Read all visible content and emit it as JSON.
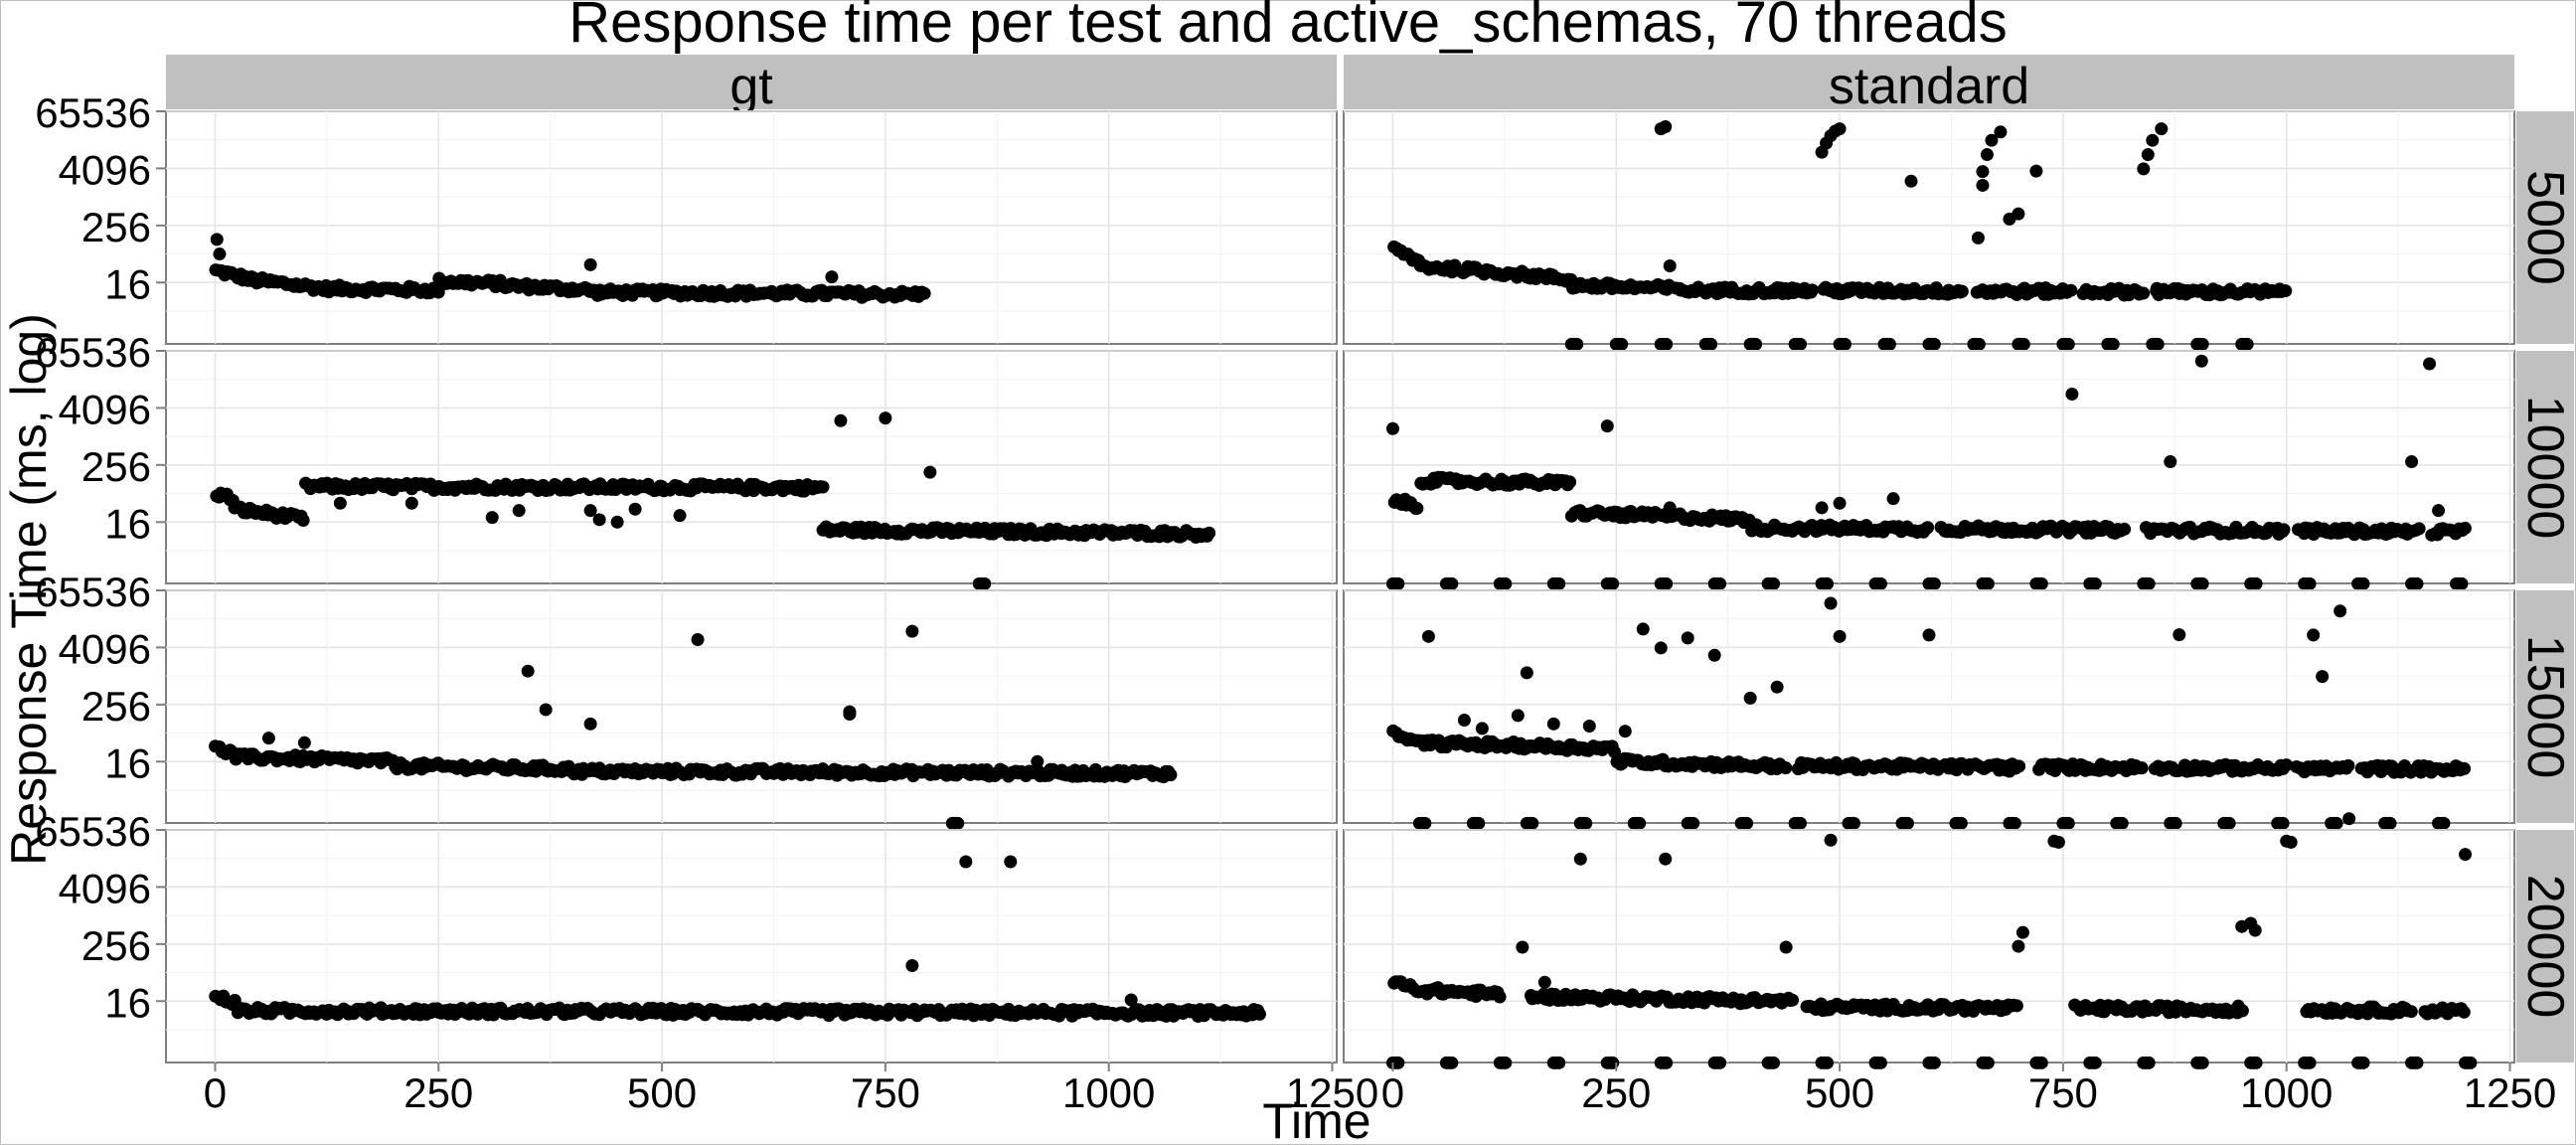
{
  "chart_data": {
    "type": "scatter",
    "title": "Response time per test and active_schemas, 70 threads",
    "xlabel": "Time",
    "ylabel": "Response Time (ms, log)",
    "y_scale": "log2",
    "x_range": [
      -55,
      1255
    ],
    "y_range": [
      1,
      65536
    ],
    "x_ticks": [
      "0",
      "250",
      "500",
      "750",
      "1000",
      "1250"
    ],
    "y_ticks": [
      "16",
      "256",
      "4096",
      "65536"
    ],
    "columns": [
      "gt",
      "standard"
    ],
    "rows": [
      "5000",
      "10000",
      "15000",
      "20000"
    ],
    "grid": true,
    "marker_color": "#000000",
    "strip_color": "#c0c0c0",
    "series_note": "each panel: cloud of ~1 point per second; baseline (ms) and run duration (s) plus outliers",
    "panels": {
      "gt|5000": {
        "duration": 795,
        "segments": [
          [
            0,
            40,
            28,
            18
          ],
          [
            40,
            120,
            18,
            12
          ],
          [
            120,
            250,
            12,
            11
          ],
          [
            250,
            320,
            17,
            15
          ],
          [
            320,
            420,
            14,
            11
          ],
          [
            420,
            795,
            10,
            9
          ]
        ],
        "gaps": [],
        "outliers": [
          [
            2,
            130
          ],
          [
            5,
            64
          ],
          [
            420,
            38
          ],
          [
            690,
            21
          ]
        ],
        "zero_points": []
      },
      "gt|10000": {
        "duration": 1115,
        "segments": [
          [
            0,
            20,
            64,
            48
          ],
          [
            20,
            100,
            30,
            18
          ],
          [
            100,
            680,
            90,
            85
          ],
          [
            680,
            1115,
            11,
            9
          ]
        ],
        "gaps": [],
        "outliers": [
          [
            750,
            2500
          ],
          [
            700,
            2200
          ],
          [
            800,
            180
          ],
          [
            140,
            40
          ],
          [
            220,
            40
          ],
          [
            310,
            20
          ],
          [
            340,
            28
          ],
          [
            420,
            28
          ],
          [
            470,
            30
          ],
          [
            520,
            22
          ],
          [
            430,
            18
          ],
          [
            450,
            16
          ]
        ],
        "zero_points": [
          [
            855,
            0.55
          ]
        ]
      },
      "gt|15000": {
        "duration": 1070,
        "segments": [
          [
            0,
            20,
            30,
            24
          ],
          [
            20,
            200,
            20,
            16
          ],
          [
            200,
            400,
            13,
            11
          ],
          [
            400,
            1070,
            10,
            9
          ]
        ],
        "gaps": [],
        "outliers": [
          [
            350,
            1300
          ],
          [
            540,
            6000
          ],
          [
            780,
            9000
          ],
          [
            710,
            180
          ],
          [
            710,
            160
          ],
          [
            370,
            200
          ],
          [
            420,
            100
          ],
          [
            920,
            16
          ],
          [
            100,
            40
          ],
          [
            60,
            50
          ]
        ],
        "zero_points": [
          [
            825,
            0.4
          ]
        ]
      },
      "gt|20000": {
        "duration": 1170,
        "segments": [
          [
            0,
            25,
            20,
            14
          ],
          [
            25,
            1170,
            10,
            9
          ]
        ],
        "gaps": [],
        "outliers": [
          [
            840,
            14000
          ],
          [
            890,
            14000
          ],
          [
            780,
            90
          ],
          [
            1025,
            17
          ]
        ],
        "zero_points": []
      },
      "standard|5000": {
        "duration": 1000,
        "segments": [
          [
            0,
            30,
            80,
            40
          ],
          [
            30,
            200,
            35,
            18
          ],
          [
            200,
            310,
            14,
            12
          ],
          [
            310,
            1000,
            11,
            10
          ]
        ],
        "gaps": [
          [
            310,
            315
          ],
          [
            470,
            480
          ],
          [
            640,
            650
          ],
          [
            760,
            770
          ],
          [
            840,
            850
          ]
        ],
        "outliers": [
          [
            300,
            28000
          ],
          [
            305,
            31000
          ],
          [
            480,
            9000
          ],
          [
            485,
            14000
          ],
          [
            490,
            20000
          ],
          [
            495,
            25000
          ],
          [
            500,
            28000
          ],
          [
            580,
            2200
          ],
          [
            660,
            3500
          ],
          [
            665,
            8000
          ],
          [
            670,
            16000
          ],
          [
            680,
            24000
          ],
          [
            690,
            350
          ],
          [
            700,
            450
          ],
          [
            720,
            3600
          ],
          [
            840,
            4000
          ],
          [
            845,
            8000
          ],
          [
            850,
            16000
          ],
          [
            860,
            28000
          ],
          [
            655,
            140
          ],
          [
            660,
            1800
          ],
          [
            310,
            36
          ],
          [
            510,
            12
          ],
          [
            855,
            12
          ]
        ],
        "zero_points": [
          [
            200,
            0.55
          ],
          [
            250,
            0.55
          ],
          [
            300,
            0.55
          ],
          [
            350,
            0.55
          ],
          [
            400,
            0.55
          ],
          [
            450,
            0.55
          ],
          [
            500,
            0.55
          ],
          [
            550,
            0.55
          ],
          [
            600,
            0.55
          ],
          [
            650,
            0.55
          ],
          [
            700,
            0.55
          ],
          [
            750,
            0.55
          ],
          [
            800,
            0.55
          ],
          [
            850,
            0.55
          ],
          [
            900,
            0.55
          ],
          [
            950,
            0.55
          ]
        ]
      },
      "standard|10000": {
        "duration": 1200,
        "segments": [
          [
            0,
            30,
            48,
            30
          ],
          [
            30,
            200,
            120,
            105
          ],
          [
            200,
            400,
            25,
            18
          ],
          [
            400,
            1200,
            12,
            10
          ]
        ],
        "gaps": [
          [
            600,
            610
          ],
          [
            820,
            840
          ],
          [
            1000,
            1010
          ],
          [
            1150,
            1160
          ]
        ],
        "outliers": [
          [
            0,
            1500
          ],
          [
            240,
            1700
          ],
          [
            760,
            8000
          ],
          [
            905,
            40000
          ],
          [
            1160,
            35000
          ],
          [
            870,
            300
          ],
          [
            1140,
            300
          ],
          [
            1170,
            28
          ],
          [
            560,
            50
          ],
          [
            480,
            32
          ],
          [
            500,
            40
          ],
          [
            310,
            32
          ]
        ],
        "zero_points": [
          [
            0,
            0.55
          ],
          [
            60,
            0.55
          ],
          [
            120,
            0.55
          ],
          [
            180,
            0.55
          ],
          [
            240,
            0.55
          ],
          [
            300,
            0.55
          ],
          [
            360,
            0.55
          ],
          [
            420,
            0.55
          ],
          [
            480,
            0.55
          ],
          [
            540,
            0.55
          ],
          [
            600,
            0.55
          ],
          [
            660,
            0.55
          ],
          [
            720,
            0.55
          ],
          [
            780,
            0.55
          ],
          [
            840,
            0.55
          ],
          [
            900,
            0.55
          ],
          [
            960,
            0.55
          ],
          [
            1020,
            0.55
          ],
          [
            1080,
            0.55
          ],
          [
            1140,
            0.55
          ],
          [
            1190,
            0.55
          ]
        ]
      },
      "standard|15000": {
        "duration": 1200,
        "segments": [
          [
            0,
            20,
            64,
            50
          ],
          [
            20,
            250,
            40,
            30
          ],
          [
            250,
            420,
            16,
            13
          ],
          [
            420,
            1200,
            13,
            11
          ]
        ],
        "gaps": [
          [
            440,
            450
          ],
          [
            700,
            720
          ],
          [
            840,
            850
          ],
          [
            1000,
            1010
          ],
          [
            1070,
            1080
          ]
        ],
        "outliers": [
          [
            490,
            35000
          ],
          [
            40,
            7000
          ],
          [
            150,
            1200
          ],
          [
            280,
            10000
          ],
          [
            300,
            4000
          ],
          [
            330,
            6500
          ],
          [
            360,
            2800
          ],
          [
            400,
            350
          ],
          [
            500,
            7000
          ],
          [
            600,
            7500
          ],
          [
            880,
            7600
          ],
          [
            1030,
            7500
          ],
          [
            1040,
            1000
          ],
          [
            1060,
            24000
          ],
          [
            1070,
            1
          ],
          [
            430,
            600
          ],
          [
            690,
            10
          ],
          [
            100,
            80
          ],
          [
            140,
            150
          ],
          [
            80,
            120
          ],
          [
            220,
            90
          ],
          [
            180,
            100
          ],
          [
            260,
            70
          ]
        ],
        "zero_points": [
          [
            30,
            0.4
          ],
          [
            90,
            0.4
          ],
          [
            150,
            0.4
          ],
          [
            210,
            0.4
          ],
          [
            270,
            0.4
          ],
          [
            330,
            0.4
          ],
          [
            390,
            0.4
          ],
          [
            450,
            0.4
          ],
          [
            510,
            0.4
          ],
          [
            570,
            0.4
          ],
          [
            630,
            0.4
          ],
          [
            690,
            0.4
          ],
          [
            750,
            0.4
          ],
          [
            810,
            0.4
          ],
          [
            870,
            0.4
          ],
          [
            930,
            0.4
          ],
          [
            990,
            0.4
          ],
          [
            1050,
            0.4
          ],
          [
            1110,
            0.4
          ],
          [
            1170,
            0.4
          ]
        ]
      },
      "standard|20000": {
        "duration": 1200,
        "segments": [
          [
            0,
            20,
            40,
            32
          ],
          [
            20,
            120,
            28,
            22
          ],
          [
            150,
            450,
            20,
            16
          ],
          [
            460,
            1200,
            12,
            10
          ]
        ],
        "gaps": [
          [
            120,
            150
          ],
          [
            450,
            460
          ],
          [
            700,
            760
          ],
          [
            950,
            1020
          ],
          [
            1140,
            1150
          ]
        ],
        "outliers": [
          [
            490,
            40000
          ],
          [
            210,
            16000
          ],
          [
            305,
            16000
          ],
          [
            145,
            220
          ],
          [
            170,
            40
          ],
          [
            440,
            220
          ],
          [
            700,
            230
          ],
          [
            705,
            450
          ],
          [
            740,
            38000
          ],
          [
            745,
            36000
          ],
          [
            950,
            600
          ],
          [
            960,
            700
          ],
          [
            965,
            500
          ],
          [
            1000,
            38000
          ],
          [
            1005,
            36000
          ],
          [
            1200,
            20000
          ]
        ],
        "zero_points": [
          [
            0,
            0.55
          ],
          [
            60,
            0.55
          ],
          [
            120,
            0.55
          ],
          [
            180,
            0.55
          ],
          [
            240,
            0.55
          ],
          [
            300,
            0.55
          ],
          [
            360,
            0.55
          ],
          [
            420,
            0.55
          ],
          [
            480,
            0.55
          ],
          [
            540,
            0.55
          ],
          [
            600,
            0.55
          ],
          [
            660,
            0.55
          ],
          [
            720,
            0.55
          ],
          [
            780,
            0.55
          ],
          [
            840,
            0.55
          ],
          [
            900,
            0.55
          ],
          [
            960,
            0.55
          ],
          [
            1020,
            0.55
          ],
          [
            1080,
            0.55
          ],
          [
            1140,
            0.55
          ],
          [
            1200,
            0.55
          ]
        ]
      }
    }
  }
}
